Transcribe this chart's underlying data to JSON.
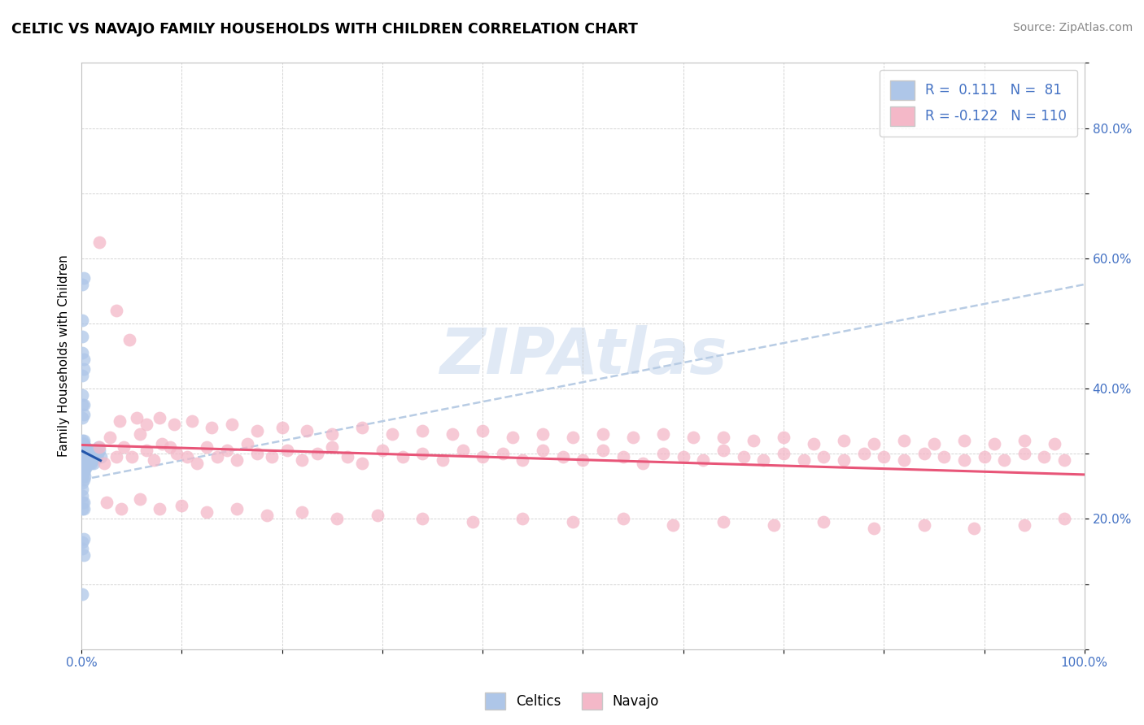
{
  "title": "CELTIC VS NAVAJO FAMILY HOUSEHOLDS WITH CHILDREN CORRELATION CHART",
  "source": "Source: ZipAtlas.com",
  "ylabel": "Family Households with Children",
  "watermark": "ZIPAtlas",
  "xlim": [
    0.0,
    1.0
  ],
  "ylim": [
    0.0,
    0.9
  ],
  "celtics_color": "#aec6e8",
  "navajo_color": "#f4b8c8",
  "celtics_line_color": "#2255aa",
  "navajo_line_color": "#e85578",
  "dash_line_color": "#b8cce4",
  "celtics_scatter": [
    [
      0.001,
      0.3
    ],
    [
      0.001,
      0.31
    ],
    [
      0.001,
      0.29
    ],
    [
      0.001,
      0.28
    ],
    [
      0.001,
      0.32
    ],
    [
      0.001,
      0.27
    ],
    [
      0.001,
      0.265
    ],
    [
      0.001,
      0.285
    ],
    [
      0.001,
      0.295
    ],
    [
      0.001,
      0.305
    ],
    [
      0.001,
      0.315
    ],
    [
      0.001,
      0.275
    ],
    [
      0.001,
      0.255
    ],
    [
      0.001,
      0.245
    ],
    [
      0.002,
      0.3
    ],
    [
      0.002,
      0.31
    ],
    [
      0.002,
      0.29
    ],
    [
      0.002,
      0.28
    ],
    [
      0.002,
      0.32
    ],
    [
      0.002,
      0.27
    ],
    [
      0.002,
      0.26
    ],
    [
      0.002,
      0.285
    ],
    [
      0.002,
      0.295
    ],
    [
      0.002,
      0.315
    ],
    [
      0.003,
      0.3
    ],
    [
      0.003,
      0.31
    ],
    [
      0.003,
      0.29
    ],
    [
      0.003,
      0.28
    ],
    [
      0.003,
      0.265
    ],
    [
      0.003,
      0.285
    ],
    [
      0.003,
      0.295
    ],
    [
      0.003,
      0.275
    ],
    [
      0.004,
      0.3
    ],
    [
      0.004,
      0.31
    ],
    [
      0.004,
      0.29
    ],
    [
      0.004,
      0.28
    ],
    [
      0.004,
      0.285
    ],
    [
      0.004,
      0.295
    ],
    [
      0.005,
      0.3
    ],
    [
      0.005,
      0.29
    ],
    [
      0.005,
      0.28
    ],
    [
      0.005,
      0.285
    ],
    [
      0.006,
      0.295
    ],
    [
      0.006,
      0.285
    ],
    [
      0.007,
      0.3
    ],
    [
      0.007,
      0.29
    ],
    [
      0.008,
      0.285
    ],
    [
      0.009,
      0.295
    ],
    [
      0.01,
      0.305
    ],
    [
      0.01,
      0.285
    ],
    [
      0.011,
      0.29
    ],
    [
      0.012,
      0.285
    ],
    [
      0.013,
      0.295
    ],
    [
      0.014,
      0.305
    ],
    [
      0.015,
      0.295
    ],
    [
      0.016,
      0.3
    ],
    [
      0.017,
      0.31
    ],
    [
      0.018,
      0.305
    ],
    [
      0.019,
      0.295
    ],
    [
      0.001,
      0.375
    ],
    [
      0.001,
      0.39
    ],
    [
      0.001,
      0.355
    ],
    [
      0.002,
      0.36
    ],
    [
      0.002,
      0.375
    ],
    [
      0.001,
      0.42
    ],
    [
      0.002,
      0.43
    ],
    [
      0.001,
      0.455
    ],
    [
      0.002,
      0.445
    ],
    [
      0.001,
      0.48
    ],
    [
      0.001,
      0.505
    ],
    [
      0.001,
      0.56
    ],
    [
      0.002,
      0.57
    ],
    [
      0.001,
      0.215
    ],
    [
      0.001,
      0.225
    ],
    [
      0.001,
      0.235
    ],
    [
      0.002,
      0.225
    ],
    [
      0.002,
      0.215
    ],
    [
      0.001,
      0.165
    ],
    [
      0.002,
      0.17
    ],
    [
      0.001,
      0.155
    ],
    [
      0.002,
      0.145
    ],
    [
      0.001,
      0.085
    ]
  ],
  "navajo_scatter": [
    [
      0.018,
      0.31
    ],
    [
      0.023,
      0.285
    ],
    [
      0.028,
      0.325
    ],
    [
      0.035,
      0.295
    ],
    [
      0.042,
      0.31
    ],
    [
      0.05,
      0.295
    ],
    [
      0.058,
      0.33
    ],
    [
      0.065,
      0.305
    ],
    [
      0.072,
      0.29
    ],
    [
      0.08,
      0.315
    ],
    [
      0.088,
      0.31
    ],
    [
      0.095,
      0.3
    ],
    [
      0.105,
      0.295
    ],
    [
      0.115,
      0.285
    ],
    [
      0.125,
      0.31
    ],
    [
      0.135,
      0.295
    ],
    [
      0.145,
      0.305
    ],
    [
      0.155,
      0.29
    ],
    [
      0.165,
      0.315
    ],
    [
      0.175,
      0.3
    ],
    [
      0.19,
      0.295
    ],
    [
      0.205,
      0.305
    ],
    [
      0.22,
      0.29
    ],
    [
      0.235,
      0.3
    ],
    [
      0.25,
      0.31
    ],
    [
      0.265,
      0.295
    ],
    [
      0.28,
      0.285
    ],
    [
      0.3,
      0.305
    ],
    [
      0.32,
      0.295
    ],
    [
      0.34,
      0.3
    ],
    [
      0.36,
      0.29
    ],
    [
      0.38,
      0.305
    ],
    [
      0.4,
      0.295
    ],
    [
      0.42,
      0.3
    ],
    [
      0.44,
      0.29
    ],
    [
      0.46,
      0.305
    ],
    [
      0.48,
      0.295
    ],
    [
      0.5,
      0.29
    ],
    [
      0.52,
      0.305
    ],
    [
      0.54,
      0.295
    ],
    [
      0.56,
      0.285
    ],
    [
      0.58,
      0.3
    ],
    [
      0.6,
      0.295
    ],
    [
      0.62,
      0.29
    ],
    [
      0.64,
      0.305
    ],
    [
      0.66,
      0.295
    ],
    [
      0.68,
      0.29
    ],
    [
      0.7,
      0.3
    ],
    [
      0.72,
      0.29
    ],
    [
      0.74,
      0.295
    ],
    [
      0.76,
      0.29
    ],
    [
      0.78,
      0.3
    ],
    [
      0.8,
      0.295
    ],
    [
      0.82,
      0.29
    ],
    [
      0.84,
      0.3
    ],
    [
      0.86,
      0.295
    ],
    [
      0.88,
      0.29
    ],
    [
      0.9,
      0.295
    ],
    [
      0.92,
      0.29
    ],
    [
      0.94,
      0.3
    ],
    [
      0.96,
      0.295
    ],
    [
      0.98,
      0.29
    ],
    [
      0.018,
      0.625
    ],
    [
      0.035,
      0.52
    ],
    [
      0.048,
      0.475
    ],
    [
      0.038,
      0.35
    ],
    [
      0.055,
      0.355
    ],
    [
      0.065,
      0.345
    ],
    [
      0.078,
      0.355
    ],
    [
      0.092,
      0.345
    ],
    [
      0.11,
      0.35
    ],
    [
      0.13,
      0.34
    ],
    [
      0.15,
      0.345
    ],
    [
      0.175,
      0.335
    ],
    [
      0.2,
      0.34
    ],
    [
      0.225,
      0.335
    ],
    [
      0.25,
      0.33
    ],
    [
      0.28,
      0.34
    ],
    [
      0.31,
      0.33
    ],
    [
      0.34,
      0.335
    ],
    [
      0.37,
      0.33
    ],
    [
      0.4,
      0.335
    ],
    [
      0.43,
      0.325
    ],
    [
      0.46,
      0.33
    ],
    [
      0.49,
      0.325
    ],
    [
      0.52,
      0.33
    ],
    [
      0.55,
      0.325
    ],
    [
      0.58,
      0.33
    ],
    [
      0.61,
      0.325
    ],
    [
      0.64,
      0.325
    ],
    [
      0.67,
      0.32
    ],
    [
      0.7,
      0.325
    ],
    [
      0.73,
      0.315
    ],
    [
      0.76,
      0.32
    ],
    [
      0.79,
      0.315
    ],
    [
      0.82,
      0.32
    ],
    [
      0.85,
      0.315
    ],
    [
      0.88,
      0.32
    ],
    [
      0.91,
      0.315
    ],
    [
      0.94,
      0.32
    ],
    [
      0.97,
      0.315
    ],
    [
      0.025,
      0.225
    ],
    [
      0.04,
      0.215
    ],
    [
      0.058,
      0.23
    ],
    [
      0.078,
      0.215
    ],
    [
      0.1,
      0.22
    ],
    [
      0.125,
      0.21
    ],
    [
      0.155,
      0.215
    ],
    [
      0.185,
      0.205
    ],
    [
      0.22,
      0.21
    ],
    [
      0.255,
      0.2
    ],
    [
      0.295,
      0.205
    ],
    [
      0.34,
      0.2
    ],
    [
      0.39,
      0.195
    ],
    [
      0.44,
      0.2
    ],
    [
      0.49,
      0.195
    ],
    [
      0.54,
      0.2
    ],
    [
      0.59,
      0.19
    ],
    [
      0.64,
      0.195
    ],
    [
      0.69,
      0.19
    ],
    [
      0.74,
      0.195
    ],
    [
      0.79,
      0.185
    ],
    [
      0.84,
      0.19
    ],
    [
      0.89,
      0.185
    ],
    [
      0.94,
      0.19
    ],
    [
      0.98,
      0.2
    ]
  ]
}
